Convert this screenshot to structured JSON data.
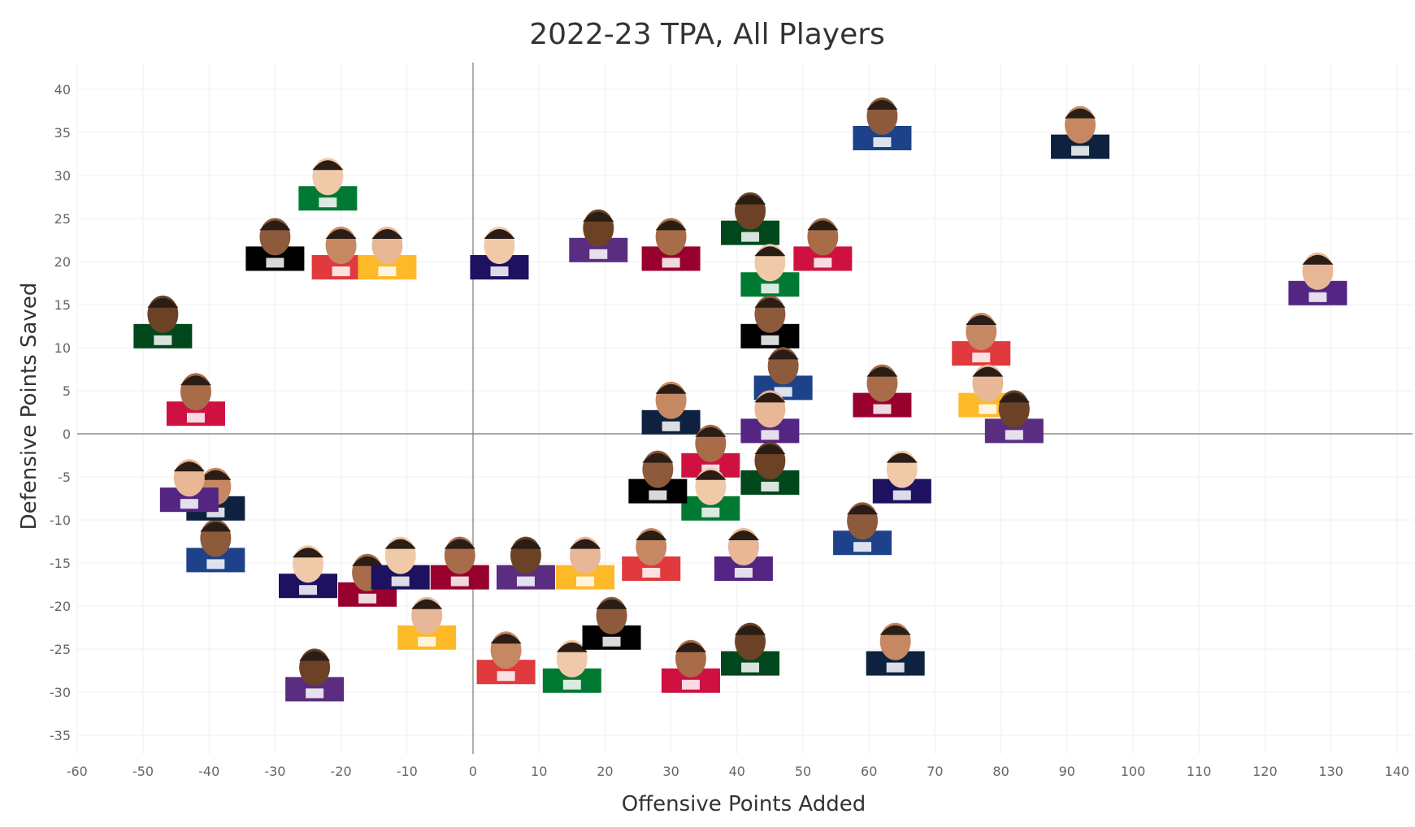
{
  "chart_data": {
    "type": "scatter",
    "title": "2022-23 TPA, All Players",
    "xlabel": "Offensive Points Added",
    "ylabel": "Defensive Points Saved",
    "xlim": [
      -60,
      140
    ],
    "ylim": [
      -35,
      40
    ],
    "x_ticks": [
      -60,
      -50,
      -40,
      -30,
      -20,
      -10,
      0,
      10,
      20,
      30,
      40,
      50,
      60,
      70,
      80,
      90,
      100,
      110,
      120,
      130,
      140
    ],
    "y_ticks": [
      40,
      35,
      30,
      25,
      20,
      15,
      10,
      5,
      0,
      -5,
      -10,
      -15,
      -20,
      -25,
      -30,
      -35
    ],
    "grid": true,
    "marker": "player-headshot",
    "points": [
      {
        "x": 62,
        "y": 35
      },
      {
        "x": 92,
        "y": 34
      },
      {
        "x": 128,
        "y": 17
      },
      {
        "x": 42,
        "y": 24
      },
      {
        "x": 53,
        "y": 21
      },
      {
        "x": 45,
        "y": 18
      },
      {
        "x": 45,
        "y": 12
      },
      {
        "x": 77,
        "y": 10
      },
      {
        "x": 78,
        "y": 4
      },
      {
        "x": 82,
        "y": 1
      },
      {
        "x": 62,
        "y": 4
      },
      {
        "x": 65,
        "y": -6
      },
      {
        "x": 59,
        "y": -12
      },
      {
        "x": 64,
        "y": -26
      },
      {
        "x": 41,
        "y": -15
      },
      {
        "x": 42,
        "y": -26
      },
      {
        "x": 33,
        "y": -28
      },
      {
        "x": 15,
        "y": -28
      },
      {
        "x": 21,
        "y": -23
      },
      {
        "x": 5,
        "y": -27
      },
      {
        "x": -7,
        "y": -23
      },
      {
        "x": -24,
        "y": -29
      },
      {
        "x": -16,
        "y": -18
      },
      {
        "x": -25,
        "y": -17
      },
      {
        "x": -39,
        "y": -14
      },
      {
        "x": -39,
        "y": -8
      },
      {
        "x": -43,
        "y": -7
      },
      {
        "x": -47,
        "y": 12
      },
      {
        "x": -42,
        "y": 3
      },
      {
        "x": -22,
        "y": 28
      },
      {
        "x": -30,
        "y": 21
      },
      {
        "x": -20,
        "y": 20
      },
      {
        "x": -13,
        "y": 20
      },
      {
        "x": 19,
        "y": 22
      },
      {
        "x": 30,
        "y": 21
      },
      {
        "x": 4,
        "y": 20
      },
      {
        "x": 47,
        "y": 6
      },
      {
        "x": 30,
        "y": 2
      },
      {
        "x": 45,
        "y": 1
      },
      {
        "x": 45,
        "y": -5
      },
      {
        "x": 36,
        "y": -3
      },
      {
        "x": 36,
        "y": -8
      },
      {
        "x": 28,
        "y": -6
      },
      {
        "x": 27,
        "y": -15
      },
      {
        "x": 17,
        "y": -16
      },
      {
        "x": 8,
        "y": -16
      },
      {
        "x": -2,
        "y": -16
      },
      {
        "x": -11,
        "y": -16
      }
    ]
  }
}
